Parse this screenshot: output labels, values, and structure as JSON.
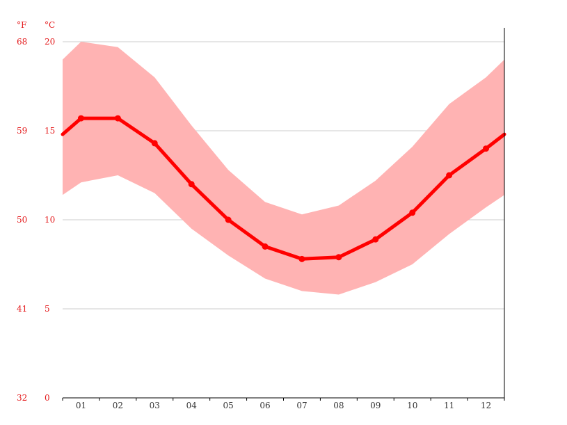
{
  "chart_data": {
    "type": "line",
    "title": "",
    "xlabel": "",
    "ylabel": "",
    "y_unit_left": "°F",
    "y_unit_right": "°C",
    "categories": [
      "01",
      "02",
      "03",
      "04",
      "05",
      "06",
      "07",
      "08",
      "09",
      "10",
      "11",
      "12"
    ],
    "series": [
      {
        "values": [
          15.7,
          15.7,
          14.3,
          12.0,
          10.0,
          8.5,
          7.8,
          7.9,
          8.9,
          10.4,
          12.5,
          14.0
        ]
      }
    ],
    "range_band": {
      "upper": [
        20.0,
        19.7,
        18.0,
        15.3,
        12.8,
        11.0,
        10.3,
        10.8,
        12.2,
        14.1,
        16.5,
        18.0
      ],
      "lower": [
        12.1,
        12.5,
        11.5,
        9.5,
        8.0,
        6.7,
        6.0,
        5.8,
        6.5,
        7.5,
        9.2,
        10.7
      ],
      "edge_left": {
        "upper": 19.0,
        "lower": 11.4,
        "mid": 14.8
      },
      "edge_right": {
        "upper": 19.0,
        "lower": 11.4,
        "mid": 14.8
      }
    },
    "y_ticks_c": [
      0,
      5,
      10,
      15,
      20
    ],
    "y_ticks_f": [
      32,
      41,
      50,
      59,
      68
    ],
    "y_tick_labels_c": [
      "0",
      "5",
      "10",
      "15",
      "20"
    ],
    "y_tick_labels_f": [
      "32",
      "41",
      "50",
      "59",
      "68"
    ],
    "ylim": [
      0,
      20
    ],
    "grid": true,
    "legend": "none",
    "colors": {
      "line": "#ff0000",
      "band": "#ffb3b3",
      "grid": "#cccccc",
      "axis_text": "#e41a1c",
      "axis": "#000000"
    }
  }
}
